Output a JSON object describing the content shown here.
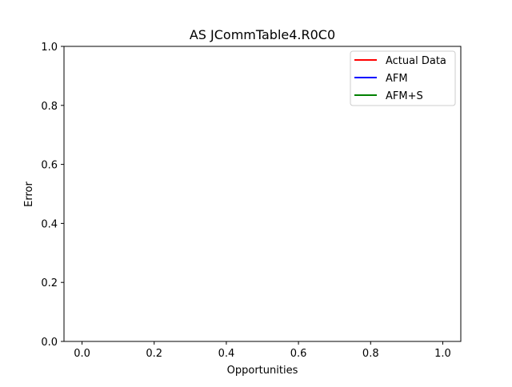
{
  "chart_data": {
    "type": "line",
    "title": "AS JCommTable4.R0C0",
    "xlabel": "Opportunities",
    "ylabel": "Error",
    "xlim": [
      -0.05,
      1.05
    ],
    "ylim": [
      0.0,
      1.0
    ],
    "xticks": [
      0.0,
      0.2,
      0.4,
      0.6,
      0.8,
      1.0
    ],
    "xtick_labels": [
      "0.0",
      "0.2",
      "0.4",
      "0.6",
      "0.8",
      "1.0"
    ],
    "yticks": [
      0.0,
      0.2,
      0.4,
      0.6,
      0.8,
      1.0
    ],
    "ytick_labels": [
      "0.0",
      "0.2",
      "0.4",
      "0.6",
      "0.8",
      "1.0"
    ],
    "grid": false,
    "legend_position": "upper right",
    "series": [
      {
        "name": "Actual Data",
        "color": "#ff0000",
        "x": [],
        "y": []
      },
      {
        "name": "AFM",
        "color": "#0000ff",
        "x": [],
        "y": []
      },
      {
        "name": "AFM+S",
        "color": "#008000",
        "x": [],
        "y": []
      }
    ]
  }
}
